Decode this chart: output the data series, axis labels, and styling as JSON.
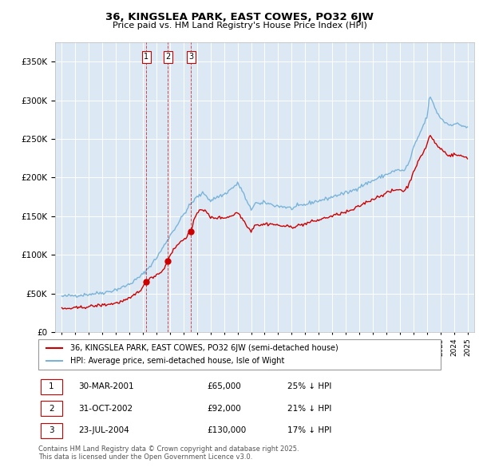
{
  "title": "36, KINGSLEA PARK, EAST COWES, PO32 6JW",
  "subtitle": "Price paid vs. HM Land Registry's House Price Index (HPI)",
  "red_label": "36, KINGSLEA PARK, EAST COWES, PO32 6JW (semi-detached house)",
  "blue_label": "HPI: Average price, semi-detached house, Isle of Wight",
  "footer": "Contains HM Land Registry data © Crown copyright and database right 2025.\nThis data is licensed under the Open Government Licence v3.0.",
  "sales": [
    {
      "num": 1,
      "date": "30-MAR-2001",
      "price": 65000,
      "pct": "25%",
      "x_year": 2001.25
    },
    {
      "num": 2,
      "date": "31-OCT-2002",
      "price": 92000,
      "pct": "21%",
      "x_year": 2002.83
    },
    {
      "num": 3,
      "date": "23-JUL-2004",
      "price": 130000,
      "pct": "17%",
      "x_year": 2004.56
    }
  ],
  "hpi_color": "#7ab3d8",
  "sale_color": "#cc0000",
  "plot_bg": "#dce9f5",
  "ylim": [
    0,
    375000
  ],
  "yticks": [
    0,
    50000,
    100000,
    150000,
    200000,
    250000,
    300000,
    350000
  ],
  "xlim_start": 1994.5,
  "xlim_end": 2025.5,
  "hpi_anchors": [
    [
      1995.0,
      46000
    ],
    [
      1995.5,
      47000
    ],
    [
      1996.0,
      47500
    ],
    [
      1996.5,
      48000
    ],
    [
      1997.0,
      49000
    ],
    [
      1997.5,
      50000
    ],
    [
      1998.0,
      51000
    ],
    [
      1998.5,
      52500
    ],
    [
      1999.0,
      55000
    ],
    [
      1999.5,
      58000
    ],
    [
      2000.0,
      62000
    ],
    [
      2000.5,
      68000
    ],
    [
      2001.0,
      75000
    ],
    [
      2001.5,
      85000
    ],
    [
      2002.0,
      96000
    ],
    [
      2002.5,
      110000
    ],
    [
      2003.0,
      125000
    ],
    [
      2003.5,
      138000
    ],
    [
      2004.0,
      152000
    ],
    [
      2004.5,
      165000
    ],
    [
      2005.0,
      175000
    ],
    [
      2005.5,
      180000
    ],
    [
      2006.0,
      170000
    ],
    [
      2006.5,
      175000
    ],
    [
      2007.0,
      178000
    ],
    [
      2007.5,
      185000
    ],
    [
      2008.0,
      192000
    ],
    [
      2008.3,
      185000
    ],
    [
      2008.7,
      168000
    ],
    [
      2009.0,
      158000
    ],
    [
      2009.3,
      168000
    ],
    [
      2009.7,
      165000
    ],
    [
      2010.0,
      168000
    ],
    [
      2010.5,
      165000
    ],
    [
      2011.0,
      163000
    ],
    [
      2011.5,
      162000
    ],
    [
      2012.0,
      160000
    ],
    [
      2012.5,
      163000
    ],
    [
      2013.0,
      165000
    ],
    [
      2013.5,
      168000
    ],
    [
      2014.0,
      170000
    ],
    [
      2014.5,
      172000
    ],
    [
      2015.0,
      175000
    ],
    [
      2015.5,
      178000
    ],
    [
      2016.0,
      180000
    ],
    [
      2016.5,
      183000
    ],
    [
      2017.0,
      188000
    ],
    [
      2017.5,
      192000
    ],
    [
      2018.0,
      196000
    ],
    [
      2018.5,
      200000
    ],
    [
      2019.0,
      204000
    ],
    [
      2019.5,
      208000
    ],
    [
      2020.0,
      210000
    ],
    [
      2020.3,
      208000
    ],
    [
      2020.7,
      220000
    ],
    [
      2021.0,
      238000
    ],
    [
      2021.5,
      258000
    ],
    [
      2022.0,
      278000
    ],
    [
      2022.2,
      305000
    ],
    [
      2022.5,
      295000
    ],
    [
      2022.8,
      282000
    ],
    [
      2023.0,
      278000
    ],
    [
      2023.3,
      272000
    ],
    [
      2023.7,
      268000
    ],
    [
      2024.0,
      270000
    ],
    [
      2024.5,
      268000
    ],
    [
      2025.0,
      265000
    ]
  ],
  "red_anchors": [
    [
      1995.0,
      30000
    ],
    [
      1995.5,
      30500
    ],
    [
      1996.0,
      31000
    ],
    [
      1996.5,
      32000
    ],
    [
      1997.0,
      33000
    ],
    [
      1997.5,
      34000
    ],
    [
      1998.0,
      35000
    ],
    [
      1998.5,
      36000
    ],
    [
      1999.0,
      37500
    ],
    [
      1999.5,
      40000
    ],
    [
      2000.0,
      43000
    ],
    [
      2000.5,
      50000
    ],
    [
      2001.0,
      58000
    ],
    [
      2001.25,
      65000
    ],
    [
      2001.5,
      70000
    ],
    [
      2001.8,
      72000
    ],
    [
      2002.0,
      74000
    ],
    [
      2002.5,
      80000
    ],
    [
      2002.83,
      92000
    ],
    [
      2003.0,
      100000
    ],
    [
      2003.5,
      112000
    ],
    [
      2004.0,
      120000
    ],
    [
      2004.56,
      130000
    ],
    [
      2004.8,
      145000
    ],
    [
      2005.0,
      155000
    ],
    [
      2005.3,
      160000
    ],
    [
      2005.7,
      155000
    ],
    [
      2006.0,
      148000
    ],
    [
      2006.5,
      148000
    ],
    [
      2007.0,
      148000
    ],
    [
      2007.5,
      150000
    ],
    [
      2008.0,
      155000
    ],
    [
      2008.3,
      148000
    ],
    [
      2008.7,
      138000
    ],
    [
      2009.0,
      130000
    ],
    [
      2009.3,
      140000
    ],
    [
      2009.7,
      138000
    ],
    [
      2010.0,
      140000
    ],
    [
      2010.5,
      140000
    ],
    [
      2011.0,
      138000
    ],
    [
      2011.5,
      137000
    ],
    [
      2012.0,
      136000
    ],
    [
      2012.5,
      138000
    ],
    [
      2013.0,
      140000
    ],
    [
      2013.5,
      143000
    ],
    [
      2014.0,
      145000
    ],
    [
      2014.5,
      148000
    ],
    [
      2015.0,
      150000
    ],
    [
      2015.5,
      153000
    ],
    [
      2016.0,
      155000
    ],
    [
      2016.5,
      158000
    ],
    [
      2017.0,
      163000
    ],
    [
      2017.5,
      168000
    ],
    [
      2018.0,
      172000
    ],
    [
      2018.5,
      176000
    ],
    [
      2019.0,
      180000
    ],
    [
      2019.5,
      183000
    ],
    [
      2020.0,
      185000
    ],
    [
      2020.3,
      182000
    ],
    [
      2020.7,
      192000
    ],
    [
      2021.0,
      208000
    ],
    [
      2021.5,
      225000
    ],
    [
      2022.0,
      242000
    ],
    [
      2022.2,
      255000
    ],
    [
      2022.5,
      248000
    ],
    [
      2022.8,
      240000
    ],
    [
      2023.0,
      238000
    ],
    [
      2023.3,
      233000
    ],
    [
      2023.7,
      228000
    ],
    [
      2024.0,
      230000
    ],
    [
      2024.5,
      228000
    ],
    [
      2025.0,
      226000
    ]
  ]
}
